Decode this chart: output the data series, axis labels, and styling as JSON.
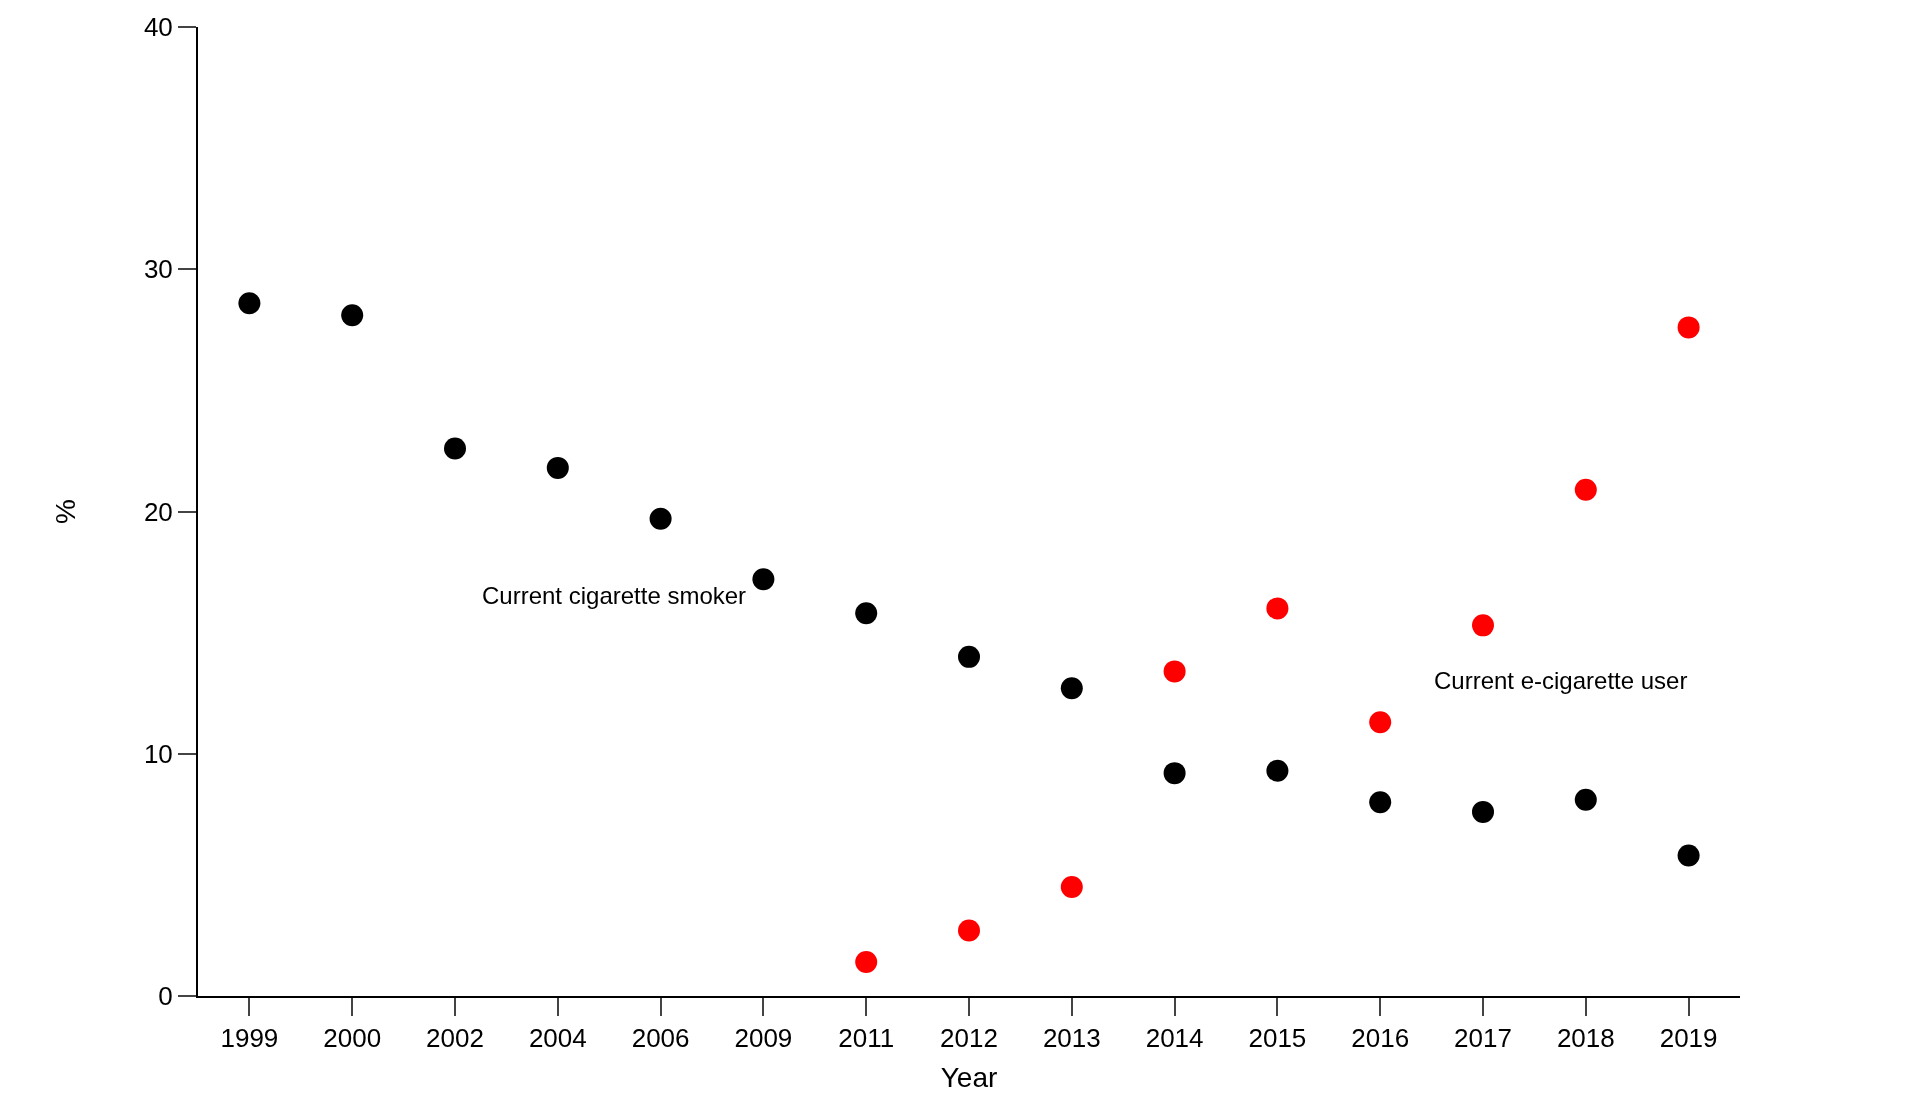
{
  "chart_data": {
    "type": "scatter",
    "xlabel": "Year",
    "ylabel": "%",
    "categories": [
      "1999",
      "2000",
      "2002",
      "2004",
      "2006",
      "2009",
      "2011",
      "2012",
      "2013",
      "2014",
      "2015",
      "2016",
      "2017",
      "2018",
      "2019"
    ],
    "series": [
      {
        "name": "Current cigarette smoker",
        "color": "#000000",
        "values": [
          28.6,
          28.1,
          22.6,
          21.8,
          19.7,
          17.2,
          15.8,
          14.0,
          12.7,
          9.2,
          9.3,
          8.0,
          7.6,
          8.1,
          5.8
        ]
      },
      {
        "name": "Current e-cigarette user",
        "color": "#ff0000",
        "values": [
          null,
          null,
          null,
          null,
          null,
          null,
          1.4,
          2.7,
          4.5,
          13.4,
          16.0,
          11.3,
          15.3,
          20.9,
          27.6
        ]
      }
    ],
    "ylim": [
      0,
      40
    ],
    "yticks": [
      0,
      10,
      20,
      30,
      40
    ],
    "legend": false
  }
}
